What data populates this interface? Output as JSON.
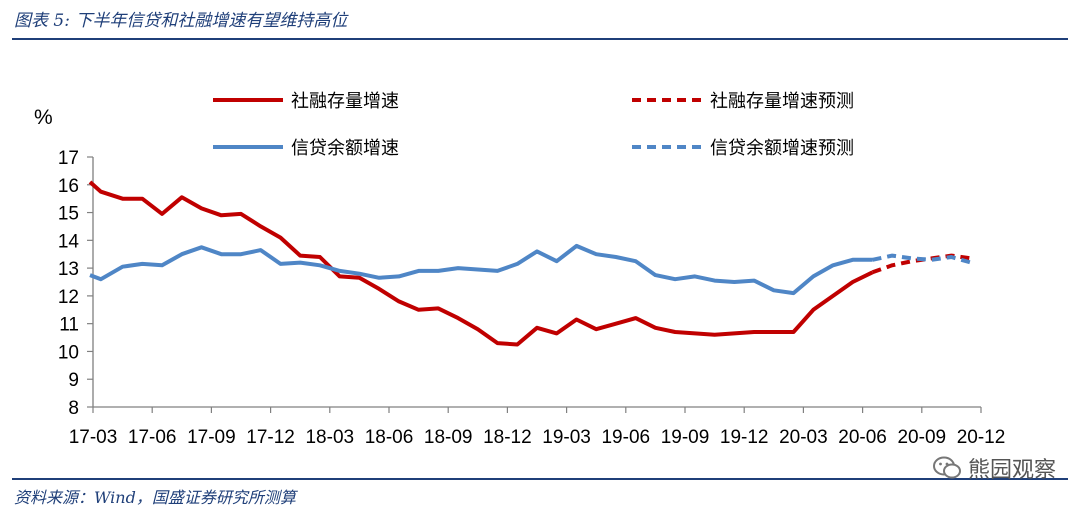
{
  "figure": {
    "title": "图表 5:  下半年信贷和社融增速有望维持高位",
    "source": "资料来源：Wind，国盛证券研究所测算",
    "watermark": "熊园观察"
  },
  "colors": {
    "red": "#c00000",
    "blue": "#4f86c6",
    "rule": "#1f3f79"
  },
  "chart_data": {
    "type": "line",
    "ylabel": "%",
    "ylim": [
      8,
      17
    ],
    "yticks": [
      8,
      9,
      10,
      11,
      12,
      13,
      14,
      15,
      16,
      17
    ],
    "xlim": [
      0,
      45
    ],
    "xtick_positions": [
      0,
      3,
      6,
      9,
      12,
      15,
      18,
      21,
      24,
      27,
      30,
      33,
      36,
      39,
      42,
      45
    ],
    "xtick_labels": [
      "17-03",
      "17-06",
      "17-09",
      "17-12",
      "18-03",
      "18-06",
      "18-09",
      "18-12",
      "19-03",
      "19-06",
      "19-09",
      "19-12",
      "20-03",
      "20-06",
      "20-09",
      "20-12"
    ],
    "series": [
      {
        "name": "社融存量增速",
        "color": "#c00000",
        "dashed": false,
        "x": [
          -0.15,
          0.4,
          1.5,
          2.5,
          3.5,
          4.5,
          5.5,
          6.5,
          7.5,
          8.5,
          9.5,
          10.5,
          11.5,
          12.5,
          13.5,
          14.5,
          15.5,
          16.5,
          17.5,
          18.5,
          19.5,
          20.5,
          21.5,
          22.5,
          23.5,
          24.5,
          25.5,
          26.5,
          27.5,
          28.5,
          29.5,
          30.5,
          31.5,
          32.5,
          33.5,
          34.5,
          35.5,
          36.5,
          37.5,
          38.5,
          39.5
        ],
        "values": [
          16.1,
          15.75,
          15.5,
          15.5,
          14.95,
          15.55,
          15.15,
          14.9,
          14.95,
          14.5,
          14.1,
          13.45,
          13.4,
          12.7,
          12.65,
          12.25,
          11.8,
          11.5,
          11.55,
          11.2,
          10.8,
          10.3,
          10.25,
          10.85,
          10.65,
          11.15,
          10.8,
          11.0,
          11.2,
          10.85,
          10.7,
          10.65,
          10.6,
          10.65,
          10.7,
          10.7,
          10.7,
          11.5,
          12.0,
          12.5,
          12.85
        ]
      },
      {
        "name": "信贷余额增速",
        "color": "#4f86c6",
        "dashed": false,
        "x": [
          -0.15,
          0.4,
          1.5,
          2.5,
          3.5,
          4.5,
          5.5,
          6.5,
          7.5,
          8.5,
          9.5,
          10.5,
          11.5,
          12.5,
          13.5,
          14.5,
          15.5,
          16.5,
          17.5,
          18.5,
          19.5,
          20.5,
          21.5,
          22.5,
          23.5,
          24.5,
          25.5,
          26.5,
          27.5,
          28.5,
          29.5,
          30.5,
          31.5,
          32.5,
          33.5,
          34.5,
          35.5,
          36.5,
          37.5,
          38.5,
          39.5
        ],
        "values": [
          12.75,
          12.6,
          13.05,
          13.15,
          13.1,
          13.5,
          13.75,
          13.5,
          13.5,
          13.65,
          13.15,
          13.2,
          13.1,
          12.9,
          12.8,
          12.65,
          12.7,
          12.9,
          12.9,
          13.0,
          12.95,
          12.9,
          13.15,
          13.6,
          13.25,
          13.8,
          13.5,
          13.4,
          13.25,
          12.75,
          12.6,
          12.7,
          12.55,
          12.5,
          12.55,
          12.2,
          12.1,
          12.7,
          13.1,
          13.3,
          13.3
        ]
      },
      {
        "name": "社融存量增速预测",
        "color": "#c00000",
        "dashed": true,
        "x": [
          39.5,
          40.5,
          41.5,
          42.5,
          43.5,
          44.5
        ],
        "values": [
          12.85,
          13.1,
          13.25,
          13.35,
          13.45,
          13.35
        ]
      },
      {
        "name": "信贷余额增速预测",
        "color": "#4f86c6",
        "dashed": true,
        "x": [
          39.5,
          40.5,
          41.5,
          42.5,
          43.5,
          44.5
        ],
        "values": [
          13.3,
          13.45,
          13.35,
          13.3,
          13.4,
          13.2
        ]
      }
    ],
    "legend": [
      {
        "label": "社融存量增速",
        "color": "#c00000",
        "dashed": false
      },
      {
        "label": "社融存量增速预测",
        "color": "#c00000",
        "dashed": true
      },
      {
        "label": "信贷余额增速",
        "color": "#4f86c6",
        "dashed": false
      },
      {
        "label": "信贷余额增速预测",
        "color": "#4f86c6",
        "dashed": true
      }
    ],
    "legend_position": "top",
    "grid": false
  }
}
